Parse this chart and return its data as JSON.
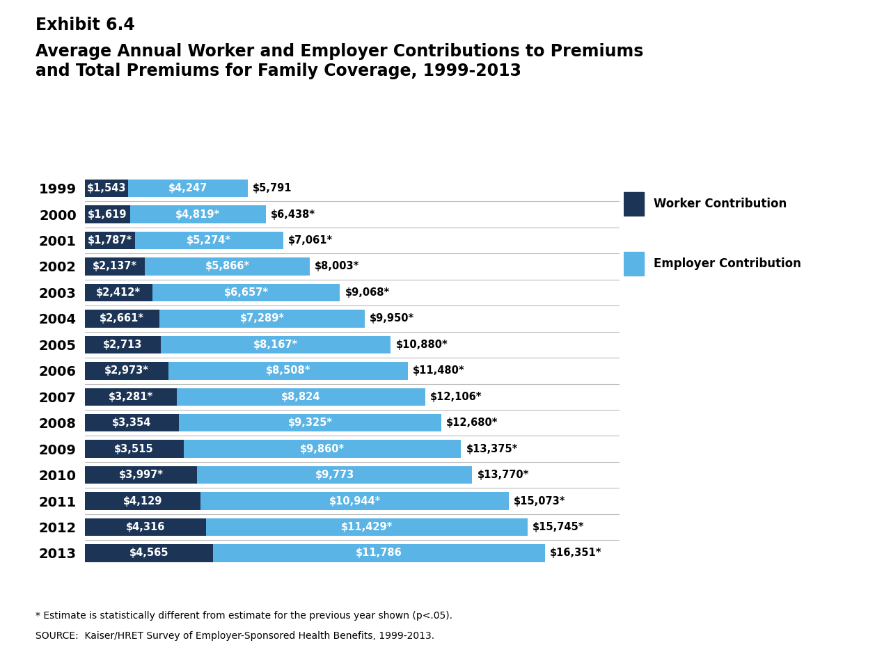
{
  "title_line1": "Exhibit 6.4",
  "title_line2": "Average Annual Worker and Employer Contributions to Premiums\nand Total Premiums for Family Coverage, 1999-2013",
  "years": [
    "1999",
    "2000",
    "2001",
    "2002",
    "2003",
    "2004",
    "2005",
    "2006",
    "2007",
    "2008",
    "2009",
    "2010",
    "2011",
    "2012",
    "2013"
  ],
  "worker": [
    1543,
    1619,
    1787,
    2137,
    2412,
    2661,
    2713,
    2973,
    3281,
    3354,
    3515,
    3997,
    4129,
    4316,
    4565
  ],
  "employer": [
    4247,
    4819,
    5274,
    5866,
    6657,
    7289,
    8167,
    8508,
    8824,
    9325,
    9860,
    9773,
    10944,
    11429,
    11786
  ],
  "worker_labels": [
    "$1,543",
    "$1,619",
    "$1,787*",
    "$2,137*",
    "$2,412*",
    "$2,661*",
    "$2,713",
    "$2,973*",
    "$3,281*",
    "$3,354",
    "$3,515",
    "$3,997*",
    "$4,129",
    "$4,316",
    "$4,565"
  ],
  "employer_labels": [
    "$4,247",
    "$4,819*",
    "$5,274*",
    "$5,866*",
    "$6,657*",
    "$7,289*",
    "$8,167*",
    "$8,508*",
    "$8,824",
    "$9,325*",
    "$9,860*",
    "$9,773",
    "$10,944*",
    "$11,429*",
    "$11,786"
  ],
  "total_labels": [
    "$5,791",
    "$6,438*",
    "$7,061*",
    "$8,003*",
    "$9,068*",
    "$9,950*",
    "$10,880*",
    "$11,480*",
    "$12,106*",
    "$12,680*",
    "$13,375*",
    "$13,770*",
    "$15,073*",
    "$15,745*",
    "$16,351*"
  ],
  "worker_color": "#1c3557",
  "employer_color": "#5ab4e5",
  "background_color": "#ffffff",
  "footnote1": "* Estimate is statistically different from estimate for the previous year shown (p<.05).",
  "footnote2": "SOURCE:  Kaiser/HRET Survey of Employer-Sponsored Health Benefits, 1999-2013.",
  "legend_worker": "Worker Contribution",
  "legend_employer": "Employer Contribution",
  "xlim": 19000,
  "bar_height": 0.68,
  "bar_label_fontsize": 10.5,
  "total_label_fontsize": 10.5,
  "year_label_fontsize": 14
}
